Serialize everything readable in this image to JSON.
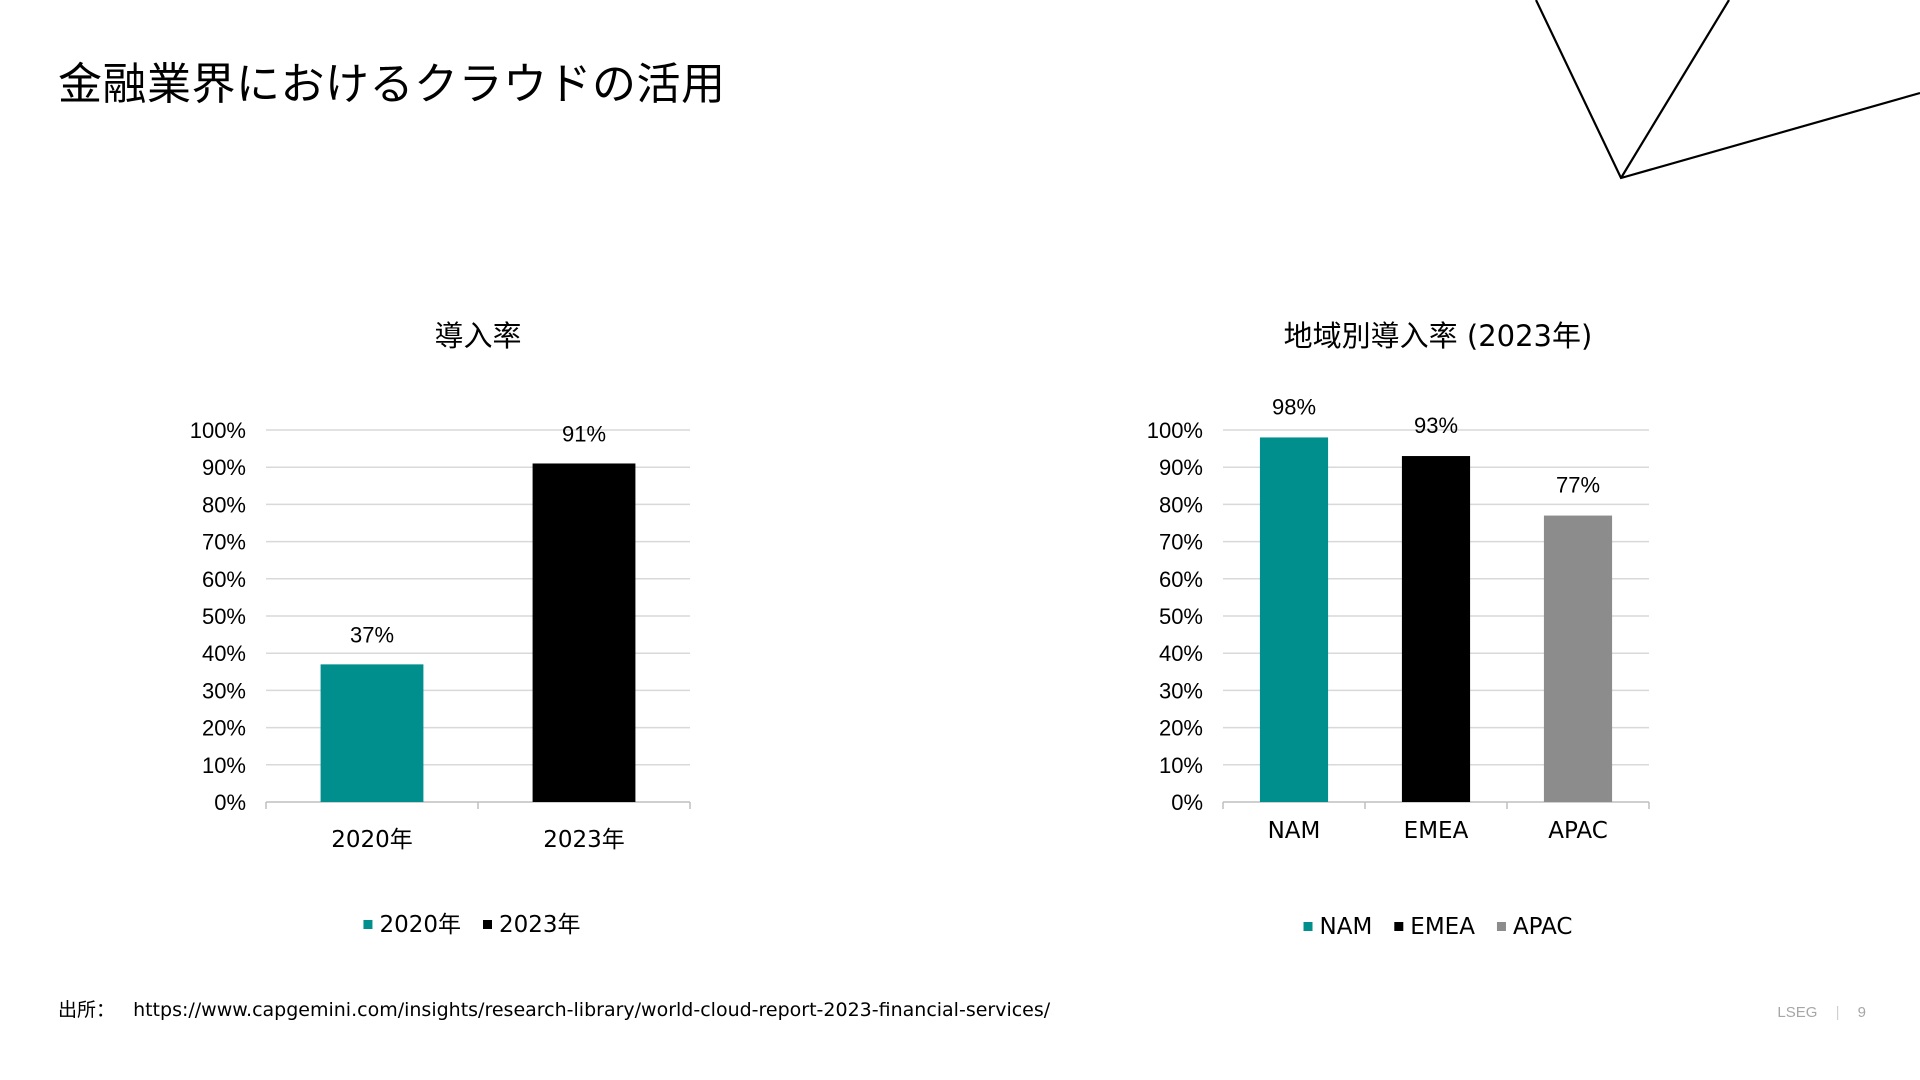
{
  "slide": {
    "title": "金融業界におけるクラウドの活用",
    "source_label": "出所：",
    "source_url": "https://www.capgemini.com/insights/research-library/world-cloud-report-2023-financial-services/",
    "footer_brand": "LSEG",
    "footer_separator": "|",
    "page_number": "9"
  },
  "chart_data": [
    {
      "type": "bar",
      "title": "導入率",
      "categories": [
        "2020年",
        "2023年"
      ],
      "values": [
        37,
        91
      ],
      "data_labels": [
        "37%",
        "91%"
      ],
      "colors": [
        "#008F8C",
        "#000000"
      ],
      "legend": [
        "2020年",
        "2023年"
      ],
      "ylim": [
        0,
        100
      ],
      "yticks": [
        "0%",
        "10%",
        "20%",
        "30%",
        "40%",
        "50%",
        "60%",
        "70%",
        "80%",
        "90%",
        "100%"
      ],
      "grid": true,
      "legend_position": "bottom"
    },
    {
      "type": "bar",
      "title": "地域別導入率 (2023年)",
      "categories": [
        "NAM",
        "EMEA",
        "APAC"
      ],
      "values": [
        98,
        93,
        77
      ],
      "data_labels": [
        "98%",
        "93%",
        "77%"
      ],
      "colors": [
        "#008F8C",
        "#000000",
        "#8C8C8C"
      ],
      "legend": [
        "NAM",
        "EMEA",
        "APAC"
      ],
      "ylim": [
        0,
        100
      ],
      "yticks": [
        "0%",
        "10%",
        "20%",
        "30%",
        "40%",
        "50%",
        "60%",
        "70%",
        "80%",
        "90%",
        "100%"
      ],
      "grid": true,
      "legend_position": "bottom"
    }
  ]
}
